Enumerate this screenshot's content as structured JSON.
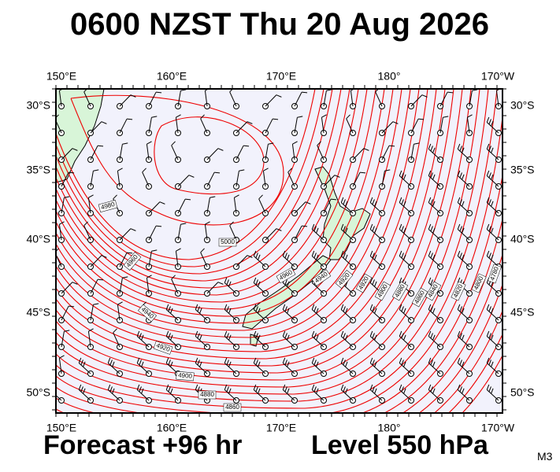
{
  "title": "0600 NZST Thu 20 Aug 2026",
  "footer": {
    "forecast": "Forecast +96 hr",
    "level": "Level 550 hPa",
    "model": "M3"
  },
  "axes": {
    "top": [
      "150°E",
      "160°E",
      "170°E",
      "180°",
      "170°W"
    ],
    "bottom": [
      "150°E",
      "160°E",
      "170°E",
      "180°",
      "170°W"
    ],
    "left": [
      "30°S",
      "35°S",
      "40°S",
      "45°S",
      "50°S"
    ],
    "right": [
      "30°S",
      "35°S",
      "40°S",
      "45°S",
      "50°S"
    ]
  },
  "contour_labels": [
    4980,
    4960,
    5000,
    4940,
    4920,
    4900,
    4880,
    4860,
    4960,
    4940,
    4920,
    4920,
    4900,
    4880,
    4860,
    4840,
    4820,
    4800,
    4780
  ]
}
